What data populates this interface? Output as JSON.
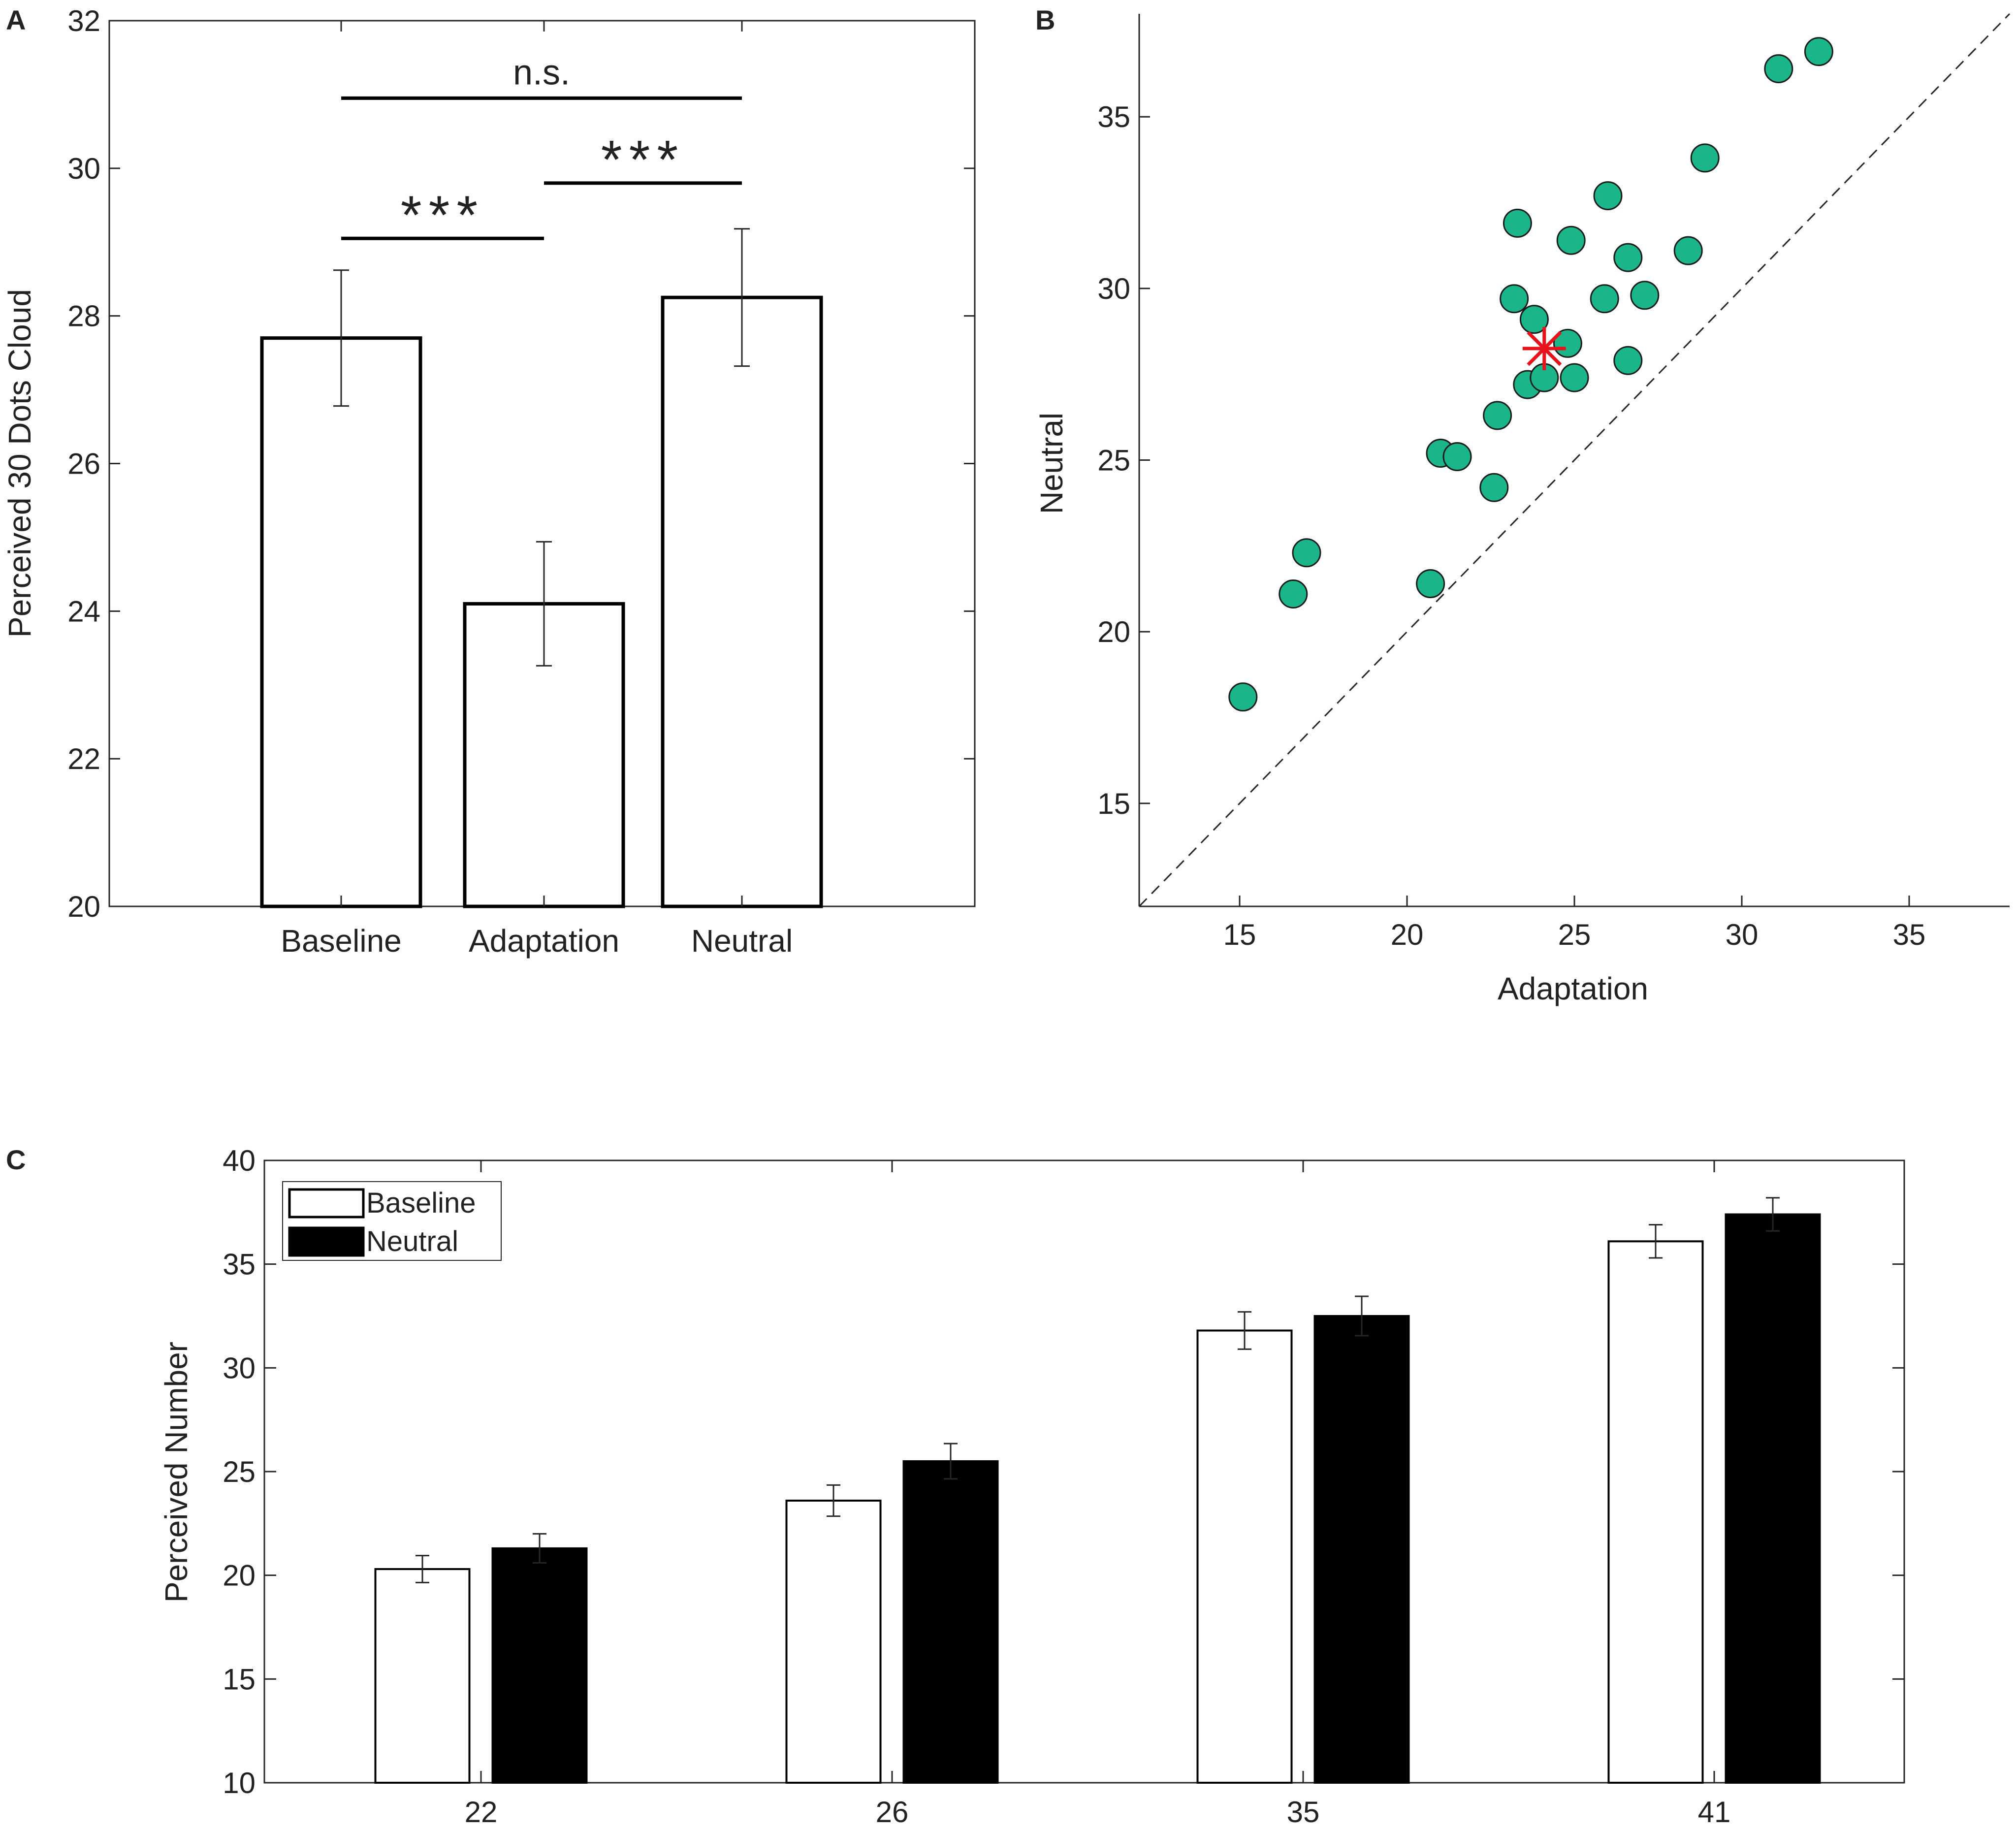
{
  "colors": {
    "axis": "#262626",
    "bar_fill_white": "#ffffff",
    "bar_fill_black": "#000000",
    "scatter_fill": "#1bb58a",
    "scatter_stroke": "#1a1a1a",
    "mean_marker": "#e8121a"
  },
  "chart_data": [
    {
      "id": "A",
      "panel_label": "A",
      "type": "bar",
      "title": "",
      "xlabel": "",
      "ylabel": "Perceived 30 Dots Cloud",
      "ylim": [
        20,
        32
      ],
      "yticks": [
        "20",
        "22",
        "24",
        "26",
        "28",
        "30",
        "32"
      ],
      "categories": [
        "Baseline",
        "Adaptation",
        "Neutral"
      ],
      "values": [
        27.7,
        24.1,
        28.25
      ],
      "errors": [
        0.92,
        0.84,
        0.93
      ],
      "significance": [
        {
          "from": 0,
          "to": 2,
          "label": "n.s.",
          "y": 30.95
        },
        {
          "from": 1,
          "to": 2,
          "label": "***",
          "y": 29.8
        },
        {
          "from": 0,
          "to": 1,
          "label": "***",
          "y": 29.05
        }
      ]
    },
    {
      "id": "B",
      "panel_label": "B",
      "type": "scatter",
      "title": "",
      "xlabel": "Adaptation",
      "ylabel": "Neutral",
      "xlim": [
        12,
        38
      ],
      "ylim": [
        12,
        38
      ],
      "xticks": [
        "15",
        "20",
        "25",
        "30",
        "35"
      ],
      "yticks": [
        "15",
        "20",
        "25",
        "30",
        "35"
      ],
      "reference_line": "identity (dashed)",
      "points": [
        [
          15.1,
          18.1
        ],
        [
          16.6,
          21.1
        ],
        [
          17.0,
          22.3
        ],
        [
          20.7,
          21.4
        ],
        [
          21.0,
          25.2
        ],
        [
          21.5,
          25.1
        ],
        [
          22.6,
          24.2
        ],
        [
          22.7,
          26.3
        ],
        [
          23.2,
          29.7
        ],
        [
          23.3,
          31.9
        ],
        [
          23.6,
          27.2
        ],
        [
          23.8,
          29.1
        ],
        [
          24.1,
          27.4
        ],
        [
          24.8,
          28.4
        ],
        [
          24.9,
          31.4
        ],
        [
          25.0,
          27.4
        ],
        [
          25.9,
          29.7
        ],
        [
          26.0,
          32.7
        ],
        [
          26.6,
          30.9
        ],
        [
          26.6,
          27.9
        ],
        [
          27.1,
          29.8
        ],
        [
          28.4,
          31.1
        ],
        [
          28.9,
          33.8
        ],
        [
          31.1,
          36.4
        ],
        [
          32.3,
          36.9
        ]
      ],
      "mean_point": [
        24.1,
        28.25
      ]
    },
    {
      "id": "C",
      "panel_label": "C",
      "type": "bar",
      "title": "",
      "xlabel": "",
      "ylabel": "Perceived Number",
      "ylim": [
        10,
        40
      ],
      "yticks": [
        "10",
        "15",
        "20",
        "25",
        "30",
        "35",
        "40"
      ],
      "categories": [
        "22",
        "26",
        "35",
        "41"
      ],
      "series": [
        {
          "name": "Baseline",
          "values": [
            20.3,
            23.6,
            31.8,
            36.1
          ],
          "errors": [
            0.65,
            0.75,
            0.9,
            0.8
          ]
        },
        {
          "name": "Neutral",
          "values": [
            21.3,
            25.5,
            32.5,
            37.4
          ],
          "errors": [
            0.7,
            0.85,
            0.95,
            0.8
          ]
        }
      ],
      "legend": {
        "position": "top-left",
        "entries": [
          "Baseline",
          "Neutral"
        ]
      }
    }
  ]
}
